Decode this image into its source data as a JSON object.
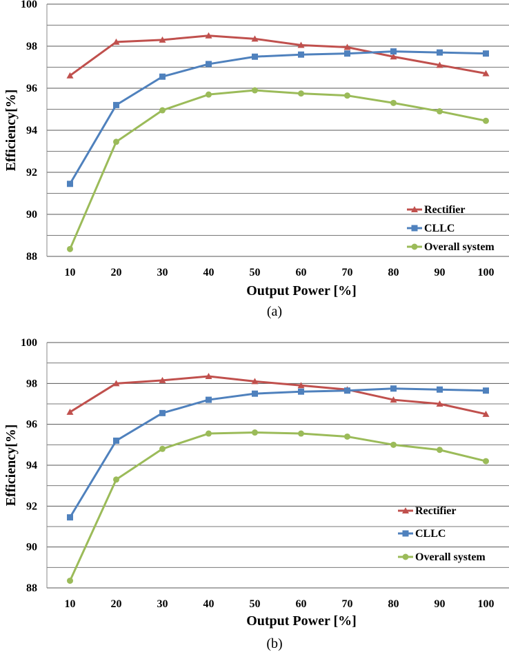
{
  "chart_data": [
    {
      "type": "line",
      "caption": "(a)",
      "xlabel": "Output Power [%]",
      "ylabel": "Efficiency[%]",
      "ylim": [
        88,
        100
      ],
      "ytick_labels": [
        "88",
        "90",
        "92",
        "94",
        "96",
        "98",
        "100"
      ],
      "categories": [
        "10",
        "20",
        "30",
        "40",
        "50",
        "60",
        "70",
        "80",
        "90",
        "100"
      ],
      "legend_position": "bottom-right",
      "series": [
        {
          "name": "Rectifier",
          "color": "#C0504D",
          "marker": "triangle",
          "values": [
            96.6,
            98.2,
            98.3,
            98.5,
            98.35,
            98.05,
            97.95,
            97.5,
            97.1,
            96.7
          ]
        },
        {
          "name": "CLLC",
          "color": "#4F81BD",
          "marker": "square",
          "values": [
            91.45,
            95.2,
            96.55,
            97.15,
            97.5,
            97.6,
            97.65,
            97.75,
            97.7,
            97.65
          ]
        },
        {
          "name": "Overall system",
          "color": "#9BBB59",
          "marker": "circle",
          "values": [
            88.35,
            93.45,
            94.95,
            95.7,
            95.9,
            95.75,
            95.65,
            95.3,
            94.9,
            94.45
          ]
        }
      ]
    },
    {
      "type": "line",
      "caption": "(b)",
      "xlabel": "Output Power [%]",
      "ylabel": "Efficiency[%]",
      "ylim": [
        88,
        100
      ],
      "ytick_labels": [
        "88",
        "90",
        "92",
        "94",
        "96",
        "98",
        "100"
      ],
      "categories": [
        "10",
        "20",
        "30",
        "40",
        "50",
        "60",
        "70",
        "80",
        "90",
        "100"
      ],
      "legend_position": "bottom-right",
      "series": [
        {
          "name": "Rectifier",
          "color": "#C0504D",
          "marker": "triangle",
          "values": [
            96.6,
            98.0,
            98.15,
            98.35,
            98.1,
            97.9,
            97.7,
            97.2,
            97.0,
            96.5
          ]
        },
        {
          "name": "CLLC",
          "color": "#4F81BD",
          "marker": "square",
          "values": [
            91.45,
            95.2,
            96.55,
            97.2,
            97.5,
            97.6,
            97.65,
            97.75,
            97.7,
            97.65
          ]
        },
        {
          "name": "Overall system",
          "color": "#9BBB59",
          "marker": "circle",
          "values": [
            88.35,
            93.3,
            94.8,
            95.55,
            95.6,
            95.55,
            95.4,
            95.0,
            94.75,
            94.2
          ]
        }
      ]
    }
  ]
}
